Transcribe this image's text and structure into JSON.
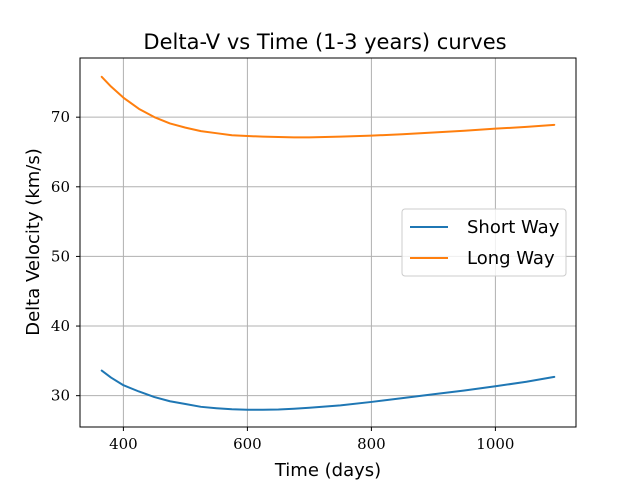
{
  "chart_data": {
    "type": "line",
    "title": "Delta-V vs Time (1-3 years) curves",
    "xlabel": "Time (days)",
    "ylabel": "Delta Velocity (km/s)",
    "xlim": [
      330,
      1130
    ],
    "ylim": [
      25.5,
      78.5
    ],
    "xticks": [
      400,
      600,
      800,
      1000
    ],
    "yticks": [
      30,
      40,
      50,
      60,
      70
    ],
    "grid": true,
    "legend_position": "center-right",
    "series": [
      {
        "name": "Short Way",
        "color": "#1f77b4",
        "x": [
          365,
          380,
          400,
          425,
          450,
          475,
          500,
          525,
          550,
          575,
          600,
          625,
          650,
          675,
          700,
          750,
          800,
          850,
          900,
          950,
          1000,
          1050,
          1095
        ],
        "y": [
          33.6,
          32.6,
          31.5,
          30.6,
          29.8,
          29.2,
          28.8,
          28.4,
          28.2,
          28.05,
          27.98,
          27.97,
          28.02,
          28.12,
          28.26,
          28.6,
          29.1,
          29.65,
          30.2,
          30.75,
          31.35,
          32.0,
          32.7
        ]
      },
      {
        "name": "Long Way",
        "color": "#ff7f0e",
        "x": [
          365,
          380,
          400,
          425,
          450,
          475,
          500,
          525,
          550,
          575,
          600,
          625,
          650,
          675,
          700,
          750,
          800,
          850,
          900,
          950,
          1000,
          1050,
          1095
        ],
        "y": [
          75.8,
          74.4,
          72.8,
          71.2,
          70.0,
          69.1,
          68.5,
          68.0,
          67.7,
          67.4,
          67.3,
          67.2,
          67.15,
          67.1,
          67.1,
          67.2,
          67.35,
          67.55,
          67.8,
          68.05,
          68.35,
          68.6,
          68.9
        ]
      }
    ]
  }
}
